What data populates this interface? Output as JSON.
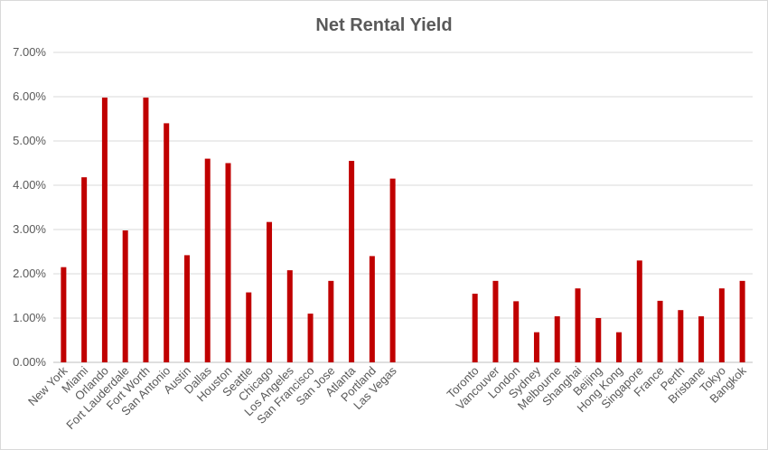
{
  "chart_data": {
    "type": "bar",
    "title": "Net Rental Yield",
    "xlabel": "",
    "ylabel": "",
    "ylim": [
      0,
      7
    ],
    "yticks": [
      0,
      1,
      2,
      3,
      4,
      5,
      6,
      7
    ],
    "ytick_labels": [
      "0.00%",
      "1.00%",
      "2.00%",
      "3.00%",
      "4.00%",
      "5.00%",
      "6.00%",
      "7.00%"
    ],
    "grid": true,
    "legend": "none",
    "bar_color": "#c00000",
    "categories": [
      "New York",
      "Miami",
      "Orlando",
      "Fort Lauderdale",
      "Fort Worth",
      "San Antonio",
      "Austin",
      "Dallas",
      "Houston",
      "Seattle",
      "Chicago",
      "Los Angeles",
      "San Francisco",
      "San Jose",
      "Atlanta",
      "Portland",
      "Las Vegas",
      "",
      "",
      "",
      "Toronto",
      "Vancouver",
      "London",
      "Sydney",
      "Melbourne",
      "Shanghai",
      "Beijing",
      "Hong Kong",
      "Singapore",
      "France",
      "Perth",
      "Brisbane",
      "Tokyo",
      "Bangkok"
    ],
    "values": [
      2.15,
      4.18,
      5.98,
      2.98,
      5.98,
      5.4,
      2.42,
      4.6,
      4.5,
      1.58,
      3.17,
      2.08,
      1.1,
      1.84,
      4.55,
      2.4,
      4.15,
      null,
      null,
      null,
      1.55,
      1.84,
      1.38,
      0.68,
      1.04,
      1.67,
      1.0,
      0.68,
      2.3,
      1.39,
      1.18,
      1.04,
      1.67,
      1.84
    ]
  }
}
